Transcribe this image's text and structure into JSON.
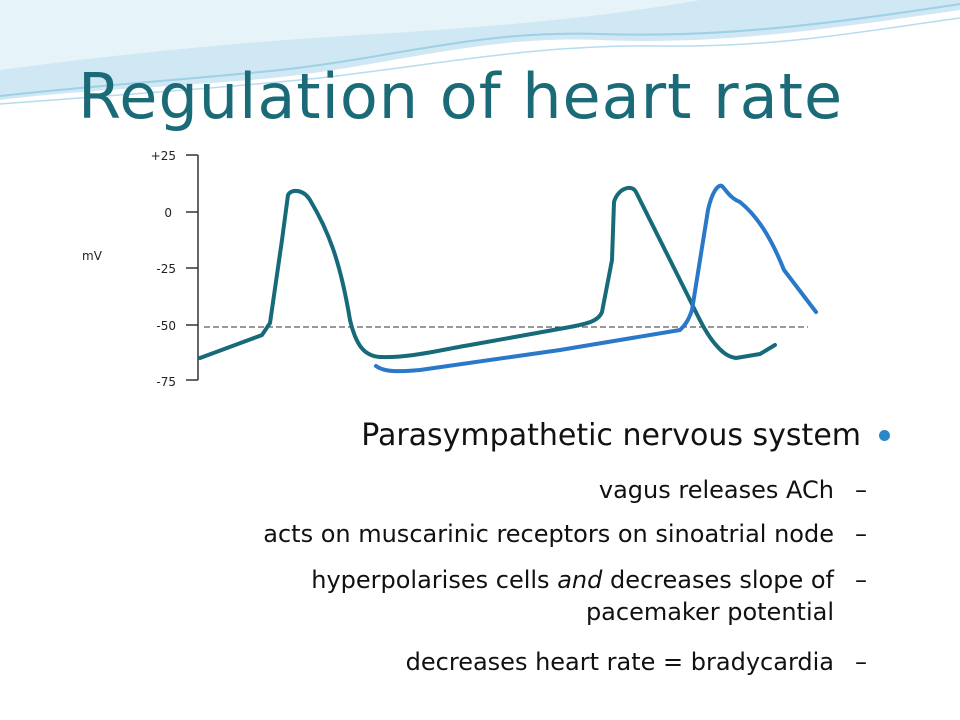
{
  "title": "Regulation of heart rate",
  "colors": {
    "title": "#1a6a78",
    "trace_primary": "#176a7a",
    "trace_secondary": "#2a78c8",
    "bullet_dot": "#2a88c8"
  },
  "chart_data": {
    "type": "line",
    "ylabel": "mV",
    "yticks": [
      "+25",
      "0",
      "-25",
      "-50",
      "-75"
    ],
    "threshold_line": {
      "style": "dashed",
      "y": -50
    },
    "series": [
      {
        "color": "#176a7a",
        "points": [
          [
            0,
            -65
          ],
          [
            28,
            -56
          ],
          [
            32,
            -55
          ],
          [
            37,
            -20
          ],
          [
            40,
            8
          ],
          [
            47,
            5
          ],
          [
            58,
            -25
          ],
          [
            62,
            -50
          ],
          [
            66,
            -63
          ],
          [
            80,
            -64
          ],
          [
            160,
            -52
          ],
          [
            178,
            -49
          ],
          [
            184,
            -40
          ],
          [
            186,
            -22
          ],
          [
            190,
            6
          ],
          [
            196,
            8
          ],
          [
            210,
            -20
          ],
          [
            228,
            -58
          ],
          [
            234,
            -64
          ],
          [
            240,
            -65
          ],
          [
            248,
            -60
          ]
        ]
      },
      {
        "color": "#2a78c8",
        "points": [
          [
            80,
            -66
          ],
          [
            88,
            -68
          ],
          [
            100,
            -68
          ],
          [
            186,
            -55
          ],
          [
            210,
            -51
          ],
          [
            214,
            -47
          ],
          [
            220,
            -30
          ],
          [
            226,
            0
          ],
          [
            232,
            10
          ],
          [
            240,
            5
          ],
          [
            252,
            -2
          ],
          [
            264,
            -20
          ],
          [
            278,
            -42
          ]
        ]
      }
    ]
  },
  "bullets": {
    "main": "Parasympathetic nervous system",
    "sub": [
      {
        "lines": [
          "vagus releases ACh"
        ]
      },
      {
        "lines": [
          "acts on muscarinic receptors on sinoatrial node"
        ]
      },
      {
        "lines_html": [
          "hyperpolarises cells ",
          "and",
          " decreases slope of"
        ],
        "line2": "pacemaker potential"
      },
      {
        "lines": [
          "decreases heart rate = bradycardia"
        ]
      }
    ],
    "marker": "–"
  }
}
